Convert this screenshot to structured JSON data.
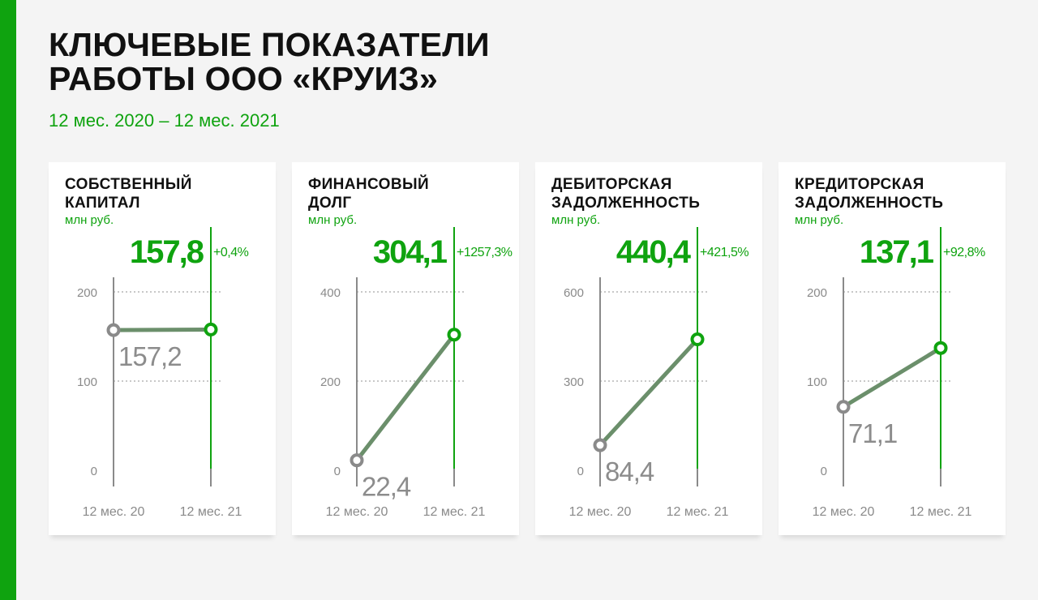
{
  "title": "КЛЮЧЕВЫЕ ПОКАЗАТЕЛИ\nРАБОТЫ ООО «КРУИЗ»",
  "subtitle": "12 мес. 2020 – 12 мес. 2021",
  "colors": {
    "accent": "#0fa30f",
    "line": "#6b8f6b",
    "start_marker": "#8a8a8a",
    "axis": "#8a8a8a",
    "grid": "#a8a8a8"
  },
  "chart_data": [
    {
      "type": "line",
      "title": "СОБСТВЕННЫЙ\nКАПИТАЛ",
      "unit": "млн руб.",
      "categories": [
        "12 мес. 20",
        "12 мес. 21"
      ],
      "values": [
        157.2,
        157.8
      ],
      "value_labels": [
        "157,2",
        "157,8"
      ],
      "change_label": "+0,4%",
      "ylim": [
        0,
        200
      ],
      "yticks": [
        0,
        100,
        200
      ],
      "grid": true
    },
    {
      "type": "line",
      "title": "ФИНАНСОВЫЙ\nДОЛГ",
      "unit": "млн руб.",
      "categories": [
        "12 мес. 20",
        "12 мес. 21"
      ],
      "values": [
        22.4,
        304.1
      ],
      "value_labels": [
        "22,4",
        "304,1"
      ],
      "change_label": "+1257,3%",
      "ylim": [
        0,
        400
      ],
      "yticks": [
        0,
        200,
        400
      ],
      "grid": true
    },
    {
      "type": "line",
      "title": "ДЕБИТОРСКАЯ\nЗАДОЛЖЕННОСТЬ",
      "unit": "млн руб.",
      "categories": [
        "12 мес. 20",
        "12 мес. 21"
      ],
      "values": [
        84.4,
        440.4
      ],
      "value_labels": [
        "84,4",
        "440,4"
      ],
      "change_label": "+421,5%",
      "ylim": [
        0,
        600
      ],
      "yticks": [
        0,
        300,
        600
      ],
      "grid": true
    },
    {
      "type": "line",
      "title": "КРЕДИТОРСКАЯ\nЗАДОЛЖЕННОСТЬ",
      "unit": "млн руб.",
      "categories": [
        "12 мес. 20",
        "12 мес. 21"
      ],
      "values": [
        71.1,
        137.1
      ],
      "value_labels": [
        "71,1",
        "137,1"
      ],
      "change_label": "+92,8%",
      "ylim": [
        0,
        200
      ],
      "yticks": [
        0,
        100,
        200
      ],
      "grid": true
    }
  ]
}
